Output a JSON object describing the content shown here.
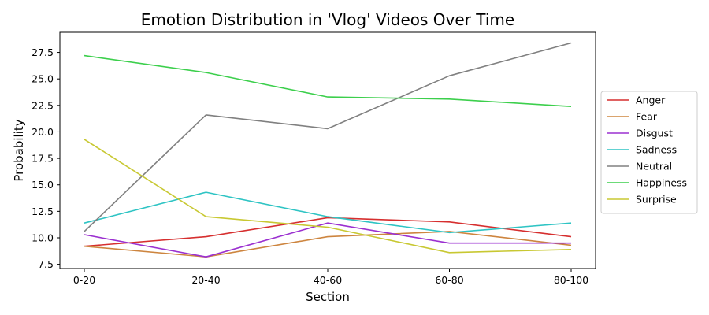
{
  "chart_data": {
    "type": "line",
    "title": "Emotion Distribution in 'Vlog' Videos Over Time",
    "xlabel": "Section",
    "ylabel": "Probability",
    "categories": [
      "0-20",
      "20-40",
      "40-60",
      "60-80",
      "80-100"
    ],
    "ylim": [
      7.1,
      29.4
    ],
    "yticks": [
      7.5,
      10.0,
      12.5,
      15.0,
      17.5,
      20.0,
      22.5,
      25.0,
      27.5
    ],
    "ytick_labels": [
      "7.5",
      "10.0",
      "12.5",
      "15.0",
      "17.5",
      "20.0",
      "22.5",
      "25.0",
      "27.5"
    ],
    "grid": false,
    "legend_position": "right-outside",
    "series": [
      {
        "name": "Anger",
        "color": "#d62f2f",
        "values": [
          9.2,
          10.1,
          11.9,
          11.5,
          10.1
        ]
      },
      {
        "name": "Fear",
        "color": "#cd853f",
        "values": [
          9.2,
          8.2,
          10.1,
          10.6,
          9.3
        ]
      },
      {
        "name": "Disgust",
        "color": "#9b30d0",
        "values": [
          10.3,
          8.2,
          11.4,
          9.5,
          9.5
        ]
      },
      {
        "name": "Sadness",
        "color": "#2fc4c4",
        "values": [
          11.4,
          14.3,
          12.0,
          10.5,
          11.4
        ]
      },
      {
        "name": "Neutral",
        "color": "#808080",
        "values": [
          10.6,
          21.6,
          20.3,
          25.3,
          28.4
        ]
      },
      {
        "name": "Happiness",
        "color": "#3ccf4c",
        "values": [
          27.2,
          25.6,
          23.3,
          23.1,
          22.4
        ]
      },
      {
        "name": "Surprise",
        "color": "#c8c832",
        "values": [
          19.3,
          12.0,
          11.0,
          8.6,
          8.9
        ]
      }
    ]
  }
}
